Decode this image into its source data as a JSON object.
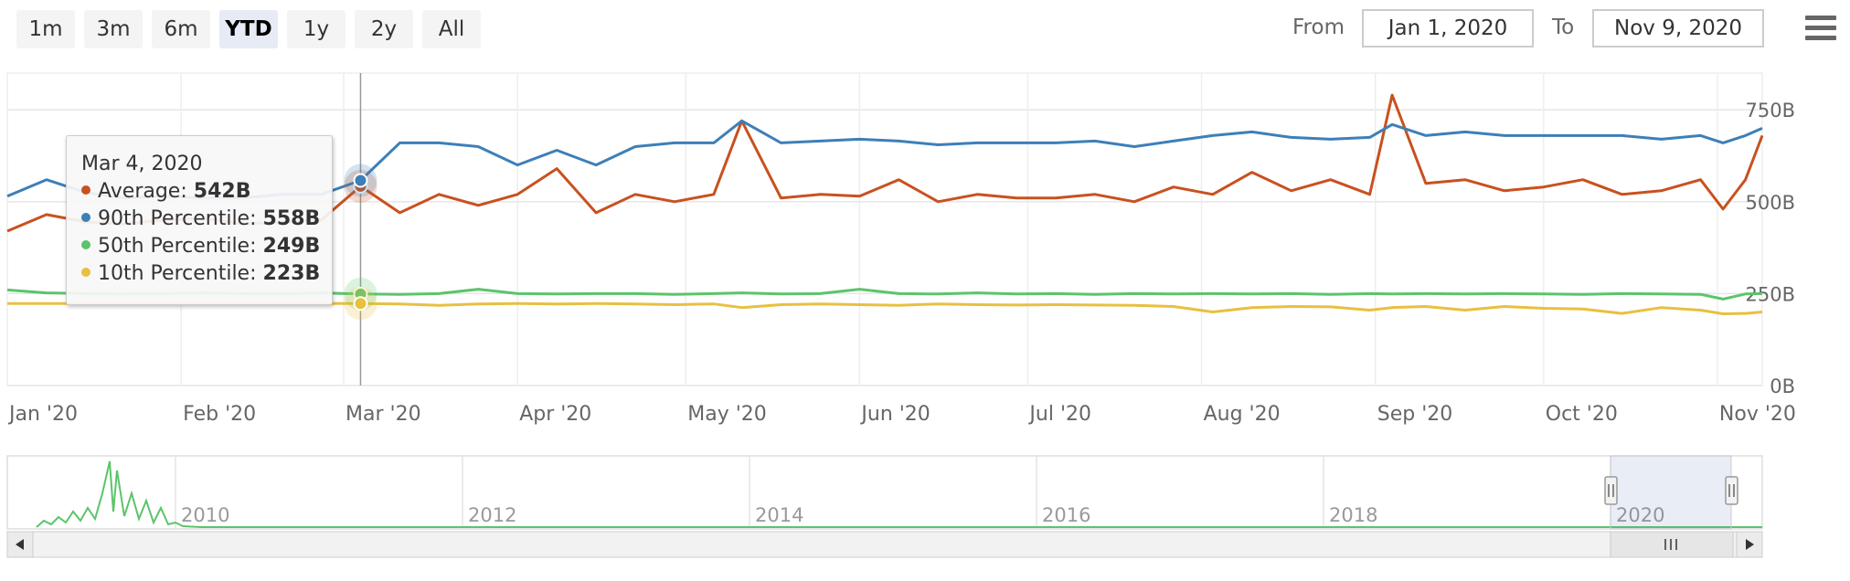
{
  "range_selector": {
    "buttons": [
      {
        "label": "1m",
        "active": false
      },
      {
        "label": "3m",
        "active": false
      },
      {
        "label": "6m",
        "active": false
      },
      {
        "label": "YTD",
        "active": true
      },
      {
        "label": "1y",
        "active": false
      },
      {
        "label": "2y",
        "active": false
      },
      {
        "label": "All",
        "active": false
      }
    ],
    "from_label": "From",
    "from_value": "Jan 1, 2020",
    "to_label": "To",
    "to_value": "Nov 9, 2020"
  },
  "menu_icon": "hamburger-menu-icon",
  "tooltip": {
    "date": "Mar 4, 2020",
    "rows": [
      {
        "label": "Average:",
        "value": "542B",
        "color": "#c8511f"
      },
      {
        "label": "90th Percentile:",
        "value": "558B",
        "color": "#3d7fb8"
      },
      {
        "label": "50th Percentile:",
        "value": "249B",
        "color": "#5bc46b"
      },
      {
        "label": "10th Percentile:",
        "value": "223B",
        "color": "#e8c040"
      }
    ]
  },
  "chart_data": {
    "type": "line",
    "x_type": "date",
    "xlim": [
      "2020-01-01",
      "2020-11-09"
    ],
    "ylim": [
      0,
      850
    ],
    "y_ticks": [
      {
        "value": 0,
        "label": "0B"
      },
      {
        "value": 250,
        "label": "250B"
      },
      {
        "value": 500,
        "label": "500B"
      },
      {
        "value": 750,
        "label": "750B"
      }
    ],
    "x_ticks": [
      {
        "date": "2020-01-01",
        "label": "Jan '20"
      },
      {
        "date": "2020-02-01",
        "label": "Feb '20"
      },
      {
        "date": "2020-03-01",
        "label": "Mar '20"
      },
      {
        "date": "2020-04-01",
        "label": "Apr '20"
      },
      {
        "date": "2020-05-01",
        "label": "May '20"
      },
      {
        "date": "2020-06-01",
        "label": "Jun '20"
      },
      {
        "date": "2020-07-01",
        "label": "Jul '20"
      },
      {
        "date": "2020-08-01",
        "label": "Aug '20"
      },
      {
        "date": "2020-09-01",
        "label": "Sep '20"
      },
      {
        "date": "2020-10-01",
        "label": "Oct '20"
      },
      {
        "date": "2020-11-01",
        "label": "Nov '20"
      }
    ],
    "grid": true,
    "crosshair_date": "2020-03-04",
    "series": [
      {
        "name": "Average",
        "color": "#c8511f",
        "points": [
          [
            "2020-01-01",
            420
          ],
          [
            "2020-01-08",
            465
          ],
          [
            "2020-01-15",
            445
          ],
          [
            "2020-01-22",
            440
          ],
          [
            "2020-01-29",
            450
          ],
          [
            "2020-02-05",
            455
          ],
          [
            "2020-02-12",
            440
          ],
          [
            "2020-02-19",
            445
          ],
          [
            "2020-02-26",
            450
          ],
          [
            "2020-03-04",
            542
          ],
          [
            "2020-03-11",
            470
          ],
          [
            "2020-03-18",
            520
          ],
          [
            "2020-03-25",
            490
          ],
          [
            "2020-04-01",
            520
          ],
          [
            "2020-04-08",
            590
          ],
          [
            "2020-04-15",
            470
          ],
          [
            "2020-04-22",
            520
          ],
          [
            "2020-04-29",
            500
          ],
          [
            "2020-05-06",
            520
          ],
          [
            "2020-05-11",
            720
          ],
          [
            "2020-05-18",
            510
          ],
          [
            "2020-05-25",
            520
          ],
          [
            "2020-06-01",
            515
          ],
          [
            "2020-06-08",
            560
          ],
          [
            "2020-06-15",
            500
          ],
          [
            "2020-06-22",
            520
          ],
          [
            "2020-06-29",
            510
          ],
          [
            "2020-07-06",
            510
          ],
          [
            "2020-07-13",
            520
          ],
          [
            "2020-07-20",
            500
          ],
          [
            "2020-07-27",
            540
          ],
          [
            "2020-08-03",
            520
          ],
          [
            "2020-08-10",
            580
          ],
          [
            "2020-08-17",
            530
          ],
          [
            "2020-08-24",
            560
          ],
          [
            "2020-08-31",
            520
          ],
          [
            "2020-09-04",
            790
          ],
          [
            "2020-09-10",
            550
          ],
          [
            "2020-09-17",
            560
          ],
          [
            "2020-09-24",
            530
          ],
          [
            "2020-10-01",
            540
          ],
          [
            "2020-10-08",
            560
          ],
          [
            "2020-10-15",
            520
          ],
          [
            "2020-10-22",
            530
          ],
          [
            "2020-10-29",
            560
          ],
          [
            "2020-11-02",
            480
          ],
          [
            "2020-11-06",
            560
          ],
          [
            "2020-11-09",
            680
          ]
        ]
      },
      {
        "name": "90th Percentile",
        "color": "#3d7fb8",
        "points": [
          [
            "2020-01-01",
            515
          ],
          [
            "2020-01-08",
            560
          ],
          [
            "2020-01-15",
            525
          ],
          [
            "2020-01-22",
            510
          ],
          [
            "2020-01-29",
            515
          ],
          [
            "2020-02-05",
            510
          ],
          [
            "2020-02-12",
            510
          ],
          [
            "2020-02-19",
            520
          ],
          [
            "2020-02-26",
            520
          ],
          [
            "2020-03-04",
            558
          ],
          [
            "2020-03-11",
            660
          ],
          [
            "2020-03-18",
            660
          ],
          [
            "2020-03-25",
            650
          ],
          [
            "2020-04-01",
            600
          ],
          [
            "2020-04-08",
            640
          ],
          [
            "2020-04-15",
            600
          ],
          [
            "2020-04-22",
            650
          ],
          [
            "2020-04-29",
            660
          ],
          [
            "2020-05-06",
            660
          ],
          [
            "2020-05-11",
            720
          ],
          [
            "2020-05-18",
            660
          ],
          [
            "2020-05-25",
            665
          ],
          [
            "2020-06-01",
            670
          ],
          [
            "2020-06-08",
            665
          ],
          [
            "2020-06-15",
            655
          ],
          [
            "2020-06-22",
            660
          ],
          [
            "2020-06-29",
            660
          ],
          [
            "2020-07-06",
            660
          ],
          [
            "2020-07-13",
            665
          ],
          [
            "2020-07-20",
            650
          ],
          [
            "2020-07-27",
            665
          ],
          [
            "2020-08-03",
            680
          ],
          [
            "2020-08-10",
            690
          ],
          [
            "2020-08-17",
            675
          ],
          [
            "2020-08-24",
            670
          ],
          [
            "2020-08-31",
            675
          ],
          [
            "2020-09-04",
            710
          ],
          [
            "2020-09-10",
            680
          ],
          [
            "2020-09-17",
            690
          ],
          [
            "2020-09-24",
            680
          ],
          [
            "2020-10-01",
            680
          ],
          [
            "2020-10-08",
            680
          ],
          [
            "2020-10-15",
            680
          ],
          [
            "2020-10-22",
            670
          ],
          [
            "2020-10-29",
            680
          ],
          [
            "2020-11-02",
            660
          ],
          [
            "2020-11-06",
            680
          ],
          [
            "2020-11-09",
            700
          ]
        ]
      },
      {
        "name": "50th Percentile",
        "color": "#5bc46b",
        "points": [
          [
            "2020-01-01",
            260
          ],
          [
            "2020-01-08",
            252
          ],
          [
            "2020-01-15",
            250
          ],
          [
            "2020-01-22",
            249
          ],
          [
            "2020-01-29",
            250
          ],
          [
            "2020-02-05",
            252
          ],
          [
            "2020-02-12",
            250
          ],
          [
            "2020-02-19",
            249
          ],
          [
            "2020-02-26",
            252
          ],
          [
            "2020-03-04",
            249
          ],
          [
            "2020-03-11",
            248
          ],
          [
            "2020-03-18",
            250
          ],
          [
            "2020-03-25",
            262
          ],
          [
            "2020-04-01",
            250
          ],
          [
            "2020-04-08",
            249
          ],
          [
            "2020-04-15",
            250
          ],
          [
            "2020-04-22",
            250
          ],
          [
            "2020-04-29",
            248
          ],
          [
            "2020-05-06",
            250
          ],
          [
            "2020-05-11",
            252
          ],
          [
            "2020-05-18",
            249
          ],
          [
            "2020-05-25",
            250
          ],
          [
            "2020-06-01",
            262
          ],
          [
            "2020-06-08",
            250
          ],
          [
            "2020-06-15",
            249
          ],
          [
            "2020-06-22",
            252
          ],
          [
            "2020-06-29",
            249
          ],
          [
            "2020-07-06",
            250
          ],
          [
            "2020-07-13",
            248
          ],
          [
            "2020-07-20",
            250
          ],
          [
            "2020-07-27",
            249
          ],
          [
            "2020-08-03",
            250
          ],
          [
            "2020-08-10",
            249
          ],
          [
            "2020-08-17",
            250
          ],
          [
            "2020-08-24",
            248
          ],
          [
            "2020-08-31",
            250
          ],
          [
            "2020-09-04",
            249
          ],
          [
            "2020-09-10",
            250
          ],
          [
            "2020-09-17",
            249
          ],
          [
            "2020-09-24",
            250
          ],
          [
            "2020-10-01",
            249
          ],
          [
            "2020-10-08",
            248
          ],
          [
            "2020-10-15",
            250
          ],
          [
            "2020-10-22",
            249
          ],
          [
            "2020-10-29",
            248
          ],
          [
            "2020-11-02",
            235
          ],
          [
            "2020-11-06",
            249
          ],
          [
            "2020-11-09",
            250
          ]
        ]
      },
      {
        "name": "10th Percentile",
        "color": "#e8c040",
        "points": [
          [
            "2020-01-01",
            223
          ],
          [
            "2020-01-08",
            223
          ],
          [
            "2020-01-15",
            223
          ],
          [
            "2020-01-22",
            223
          ],
          [
            "2020-01-29",
            223
          ],
          [
            "2020-02-05",
            223
          ],
          [
            "2020-02-12",
            223
          ],
          [
            "2020-02-19",
            223
          ],
          [
            "2020-02-26",
            223
          ],
          [
            "2020-03-04",
            223
          ],
          [
            "2020-03-11",
            222
          ],
          [
            "2020-03-18",
            218
          ],
          [
            "2020-03-25",
            222
          ],
          [
            "2020-04-01",
            223
          ],
          [
            "2020-04-08",
            222
          ],
          [
            "2020-04-15",
            223
          ],
          [
            "2020-04-22",
            222
          ],
          [
            "2020-04-29",
            220
          ],
          [
            "2020-05-06",
            222
          ],
          [
            "2020-05-11",
            212
          ],
          [
            "2020-05-18",
            220
          ],
          [
            "2020-05-25",
            222
          ],
          [
            "2020-06-01",
            220
          ],
          [
            "2020-06-08",
            218
          ],
          [
            "2020-06-15",
            222
          ],
          [
            "2020-06-22",
            220
          ],
          [
            "2020-06-29",
            219
          ],
          [
            "2020-07-06",
            220
          ],
          [
            "2020-07-13",
            219
          ],
          [
            "2020-07-20",
            218
          ],
          [
            "2020-07-27",
            215
          ],
          [
            "2020-08-03",
            200
          ],
          [
            "2020-08-10",
            212
          ],
          [
            "2020-08-17",
            215
          ],
          [
            "2020-08-24",
            214
          ],
          [
            "2020-08-31",
            205
          ],
          [
            "2020-09-04",
            212
          ],
          [
            "2020-09-10",
            215
          ],
          [
            "2020-09-17",
            205
          ],
          [
            "2020-09-24",
            215
          ],
          [
            "2020-10-01",
            210
          ],
          [
            "2020-10-08",
            208
          ],
          [
            "2020-10-15",
            196
          ],
          [
            "2020-10-22",
            212
          ],
          [
            "2020-10-29",
            205
          ],
          [
            "2020-11-02",
            195
          ],
          [
            "2020-11-06",
            196
          ],
          [
            "2020-11-09",
            200
          ]
        ]
      }
    ]
  },
  "navigator": {
    "year_labels": [
      "2010",
      "2012",
      "2014",
      "2016",
      "2018",
      "2020"
    ],
    "selected_range": [
      "2020-01-01",
      "2020-11-09"
    ],
    "scrollbar_left_arrow": "scroll-left-arrow-icon",
    "scrollbar_right_arrow": "scroll-right-arrow-icon"
  }
}
